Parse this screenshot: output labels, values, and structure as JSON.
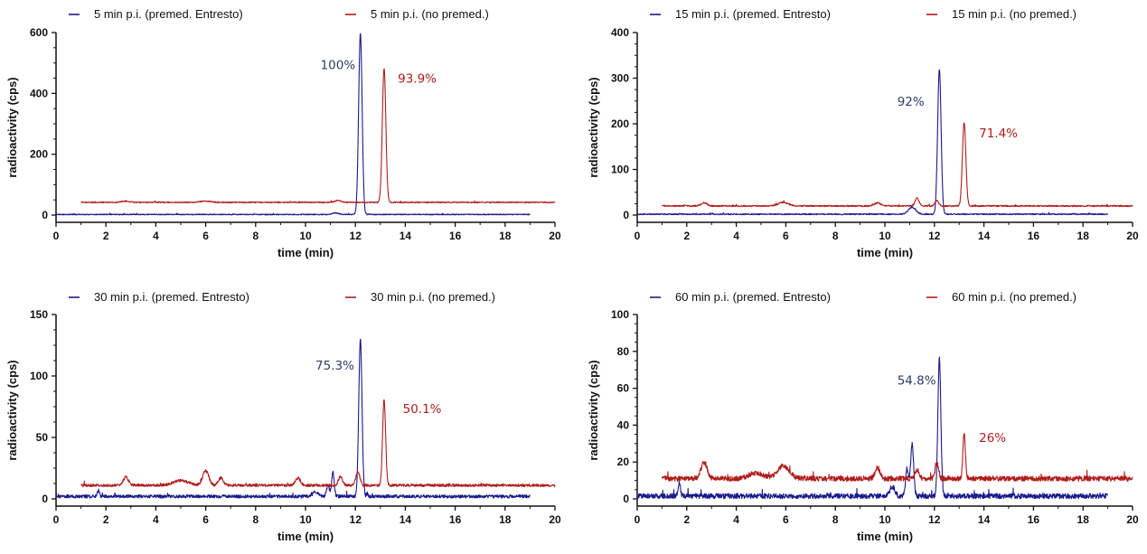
{
  "chart_data": [
    {
      "type": "line",
      "xlabel": "time (min)",
      "ylabel": "radioactivity (cps)",
      "xlim": [
        0,
        20
      ],
      "ylim": [
        0,
        600
      ],
      "xticks": [
        "0",
        "2",
        "4",
        "6",
        "8",
        "10",
        "12",
        "14",
        "16",
        "18",
        "20"
      ],
      "yticks": [
        "0",
        "200",
        "400",
        "600"
      ],
      "ytick_values": [
        0,
        200,
        400,
        600
      ],
      "legend_position": "top",
      "series": [
        {
          "name": "5 min p.i. (premed. Entresto)",
          "color": "#1a1a8c",
          "baseline": 2,
          "noise": 1.5,
          "x_start": 0,
          "x_end": 19,
          "peaks": [
            {
              "x": 11.2,
              "height": 5,
              "width": 0.12
            },
            {
              "x": 12.2,
              "height": 595,
              "width": 0.07
            }
          ]
        },
        {
          "name": "5 min p.i. (no premed.)",
          "color": "#b01c1c",
          "baseline": 42,
          "noise": 1.8,
          "x_start": 1,
          "x_end": 20,
          "peaks": [
            {
              "x": 2.8,
              "height": 4,
              "width": 0.15
            },
            {
              "x": 6.0,
              "height": 4,
              "width": 0.2
            },
            {
              "x": 11.3,
              "height": 6,
              "width": 0.12
            },
            {
              "x": 13.15,
              "height": 440,
              "width": 0.07
            }
          ]
        }
      ],
      "annotations": [
        {
          "text": "100%",
          "x": 10.6,
          "y": 480,
          "color": "#2c3e66"
        },
        {
          "text": "93.9%",
          "x": 13.7,
          "y": 435,
          "color": "#b01c1c"
        }
      ]
    },
    {
      "type": "line",
      "xlabel": "time (min)",
      "ylabel": "radioactivity (cps)",
      "xlim": [
        0,
        20
      ],
      "ylim": [
        0,
        400
      ],
      "xticks": [
        "0",
        "2",
        "4",
        "6",
        "8",
        "10",
        "12",
        "14",
        "16",
        "18",
        "20"
      ],
      "yticks": [
        "0",
        "100",
        "200",
        "300",
        "400"
      ],
      "ytick_values": [
        0,
        100,
        200,
        300,
        400
      ],
      "legend_position": "top",
      "series": [
        {
          "name": "15 min p.i. (premed. Entresto)",
          "color": "#1a1a8c",
          "baseline": 2,
          "noise": 1.3,
          "x_start": 0,
          "x_end": 19,
          "peaks": [
            {
              "x": 11.1,
              "height": 15,
              "width": 0.15
            },
            {
              "x": 12.2,
              "height": 318,
              "width": 0.07
            }
          ]
        },
        {
          "name": "15 min p.i. (no premed.)",
          "color": "#b01c1c",
          "baseline": 20,
          "noise": 1.5,
          "x_start": 1,
          "x_end": 20,
          "peaks": [
            {
              "x": 2.7,
              "height": 7,
              "width": 0.12
            },
            {
              "x": 5.9,
              "height": 8,
              "width": 0.2
            },
            {
              "x": 9.7,
              "height": 7,
              "width": 0.12
            },
            {
              "x": 11.3,
              "height": 17,
              "width": 0.08
            },
            {
              "x": 12.1,
              "height": 12,
              "width": 0.07
            },
            {
              "x": 13.2,
              "height": 182,
              "width": 0.07
            }
          ]
        }
      ],
      "annotations": [
        {
          "text": "92%",
          "x": 10.5,
          "y": 240,
          "color": "#2c3e66"
        },
        {
          "text": "71.4%",
          "x": 13.8,
          "y": 170,
          "color": "#b01c1c"
        }
      ]
    },
    {
      "type": "line",
      "xlabel": "time (min)",
      "ylabel": "radioactivity (cps)",
      "xlim": [
        0,
        20
      ],
      "ylim": [
        0,
        150
      ],
      "xticks": [
        "0",
        "2",
        "4",
        "6",
        "8",
        "10",
        "12",
        "14",
        "16",
        "18",
        "20"
      ],
      "yticks": [
        "0",
        "50",
        "100",
        "150"
      ],
      "ytick_values": [
        0,
        50,
        100,
        150
      ],
      "legend_position": "top",
      "series": [
        {
          "name": "30 min p.i. (premed. Entresto)",
          "color": "#1a1a8c",
          "baseline": 2,
          "noise": 1.3,
          "x_start": 0,
          "x_end": 19,
          "peaks": [
            {
              "x": 1.7,
              "height": 5,
              "width": 0.04
            },
            {
              "x": 10.4,
              "height": 4,
              "width": 0.1
            },
            {
              "x": 10.9,
              "height": 9,
              "width": 0.06
            },
            {
              "x": 11.1,
              "height": 20,
              "width": 0.05
            },
            {
              "x": 12.2,
              "height": 128,
              "width": 0.065
            }
          ]
        },
        {
          "name": "30 min p.i. (no premed.)",
          "color": "#b01c1c",
          "baseline": 11,
          "noise": 1.1,
          "x_start": 1,
          "x_end": 20,
          "peaks": [
            {
              "x": 2.8,
              "height": 7,
              "width": 0.1
            },
            {
              "x": 5.0,
              "height": 4,
              "width": 0.3
            },
            {
              "x": 6.0,
              "height": 12,
              "width": 0.12
            },
            {
              "x": 6.6,
              "height": 6,
              "width": 0.1
            },
            {
              "x": 9.7,
              "height": 6,
              "width": 0.1
            },
            {
              "x": 11.4,
              "height": 7,
              "width": 0.08
            },
            {
              "x": 12.1,
              "height": 11,
              "width": 0.08
            },
            {
              "x": 13.15,
              "height": 70,
              "width": 0.06
            }
          ]
        }
      ],
      "annotations": [
        {
          "text": "75.3%",
          "x": 10.4,
          "y": 105,
          "color": "#2c3e66"
        },
        {
          "text": "50.1%",
          "x": 13.9,
          "y": 70,
          "color": "#b01c1c"
        }
      ]
    },
    {
      "type": "line",
      "xlabel": "time (min)",
      "ylabel": "radioactivity (cps)",
      "xlim": [
        0,
        20
      ],
      "ylim": [
        0,
        100
      ],
      "xticks": [
        "0",
        "2",
        "4",
        "6",
        "8",
        "10",
        "12",
        "14",
        "16",
        "18",
        "20"
      ],
      "yticks": [
        "0",
        "20",
        "40",
        "60",
        "80",
        "100"
      ],
      "ytick_values": [
        0,
        20,
        40,
        60,
        80,
        100
      ],
      "legend_position": "top",
      "series": [
        {
          "name": "60 min p.i. (premed. Entresto)",
          "color": "#1a1a8c",
          "baseline": 1.5,
          "noise": 1.4,
          "x_start": 0,
          "x_end": 19,
          "peaks": [
            {
              "x": 1.7,
              "height": 7,
              "width": 0.05
            },
            {
              "x": 10.3,
              "height": 5,
              "width": 0.1
            },
            {
              "x": 10.9,
              "height": 15,
              "width": 0.06
            },
            {
              "x": 11.1,
              "height": 28,
              "width": 0.06
            },
            {
              "x": 12.2,
              "height": 75,
              "width": 0.06
            }
          ]
        },
        {
          "name": "60 min p.i. (no premed.)",
          "color": "#b01c1c",
          "baseline": 11,
          "noise": 1.4,
          "x_start": 1,
          "x_end": 20,
          "peaks": [
            {
              "x": 2.7,
              "height": 9,
              "width": 0.12
            },
            {
              "x": 4.8,
              "height": 3,
              "width": 0.3
            },
            {
              "x": 5.9,
              "height": 7,
              "width": 0.25
            },
            {
              "x": 9.7,
              "height": 6,
              "width": 0.1
            },
            {
              "x": 11.3,
              "height": 5,
              "width": 0.08
            },
            {
              "x": 12.1,
              "height": 9,
              "width": 0.07
            },
            {
              "x": 13.2,
              "height": 24,
              "width": 0.05
            }
          ]
        }
      ],
      "annotations": [
        {
          "text": "54.8%",
          "x": 10.5,
          "y": 62,
          "color": "#2c3e66"
        },
        {
          "text": "26%",
          "x": 13.8,
          "y": 31,
          "color": "#b01c1c"
        }
      ]
    }
  ]
}
